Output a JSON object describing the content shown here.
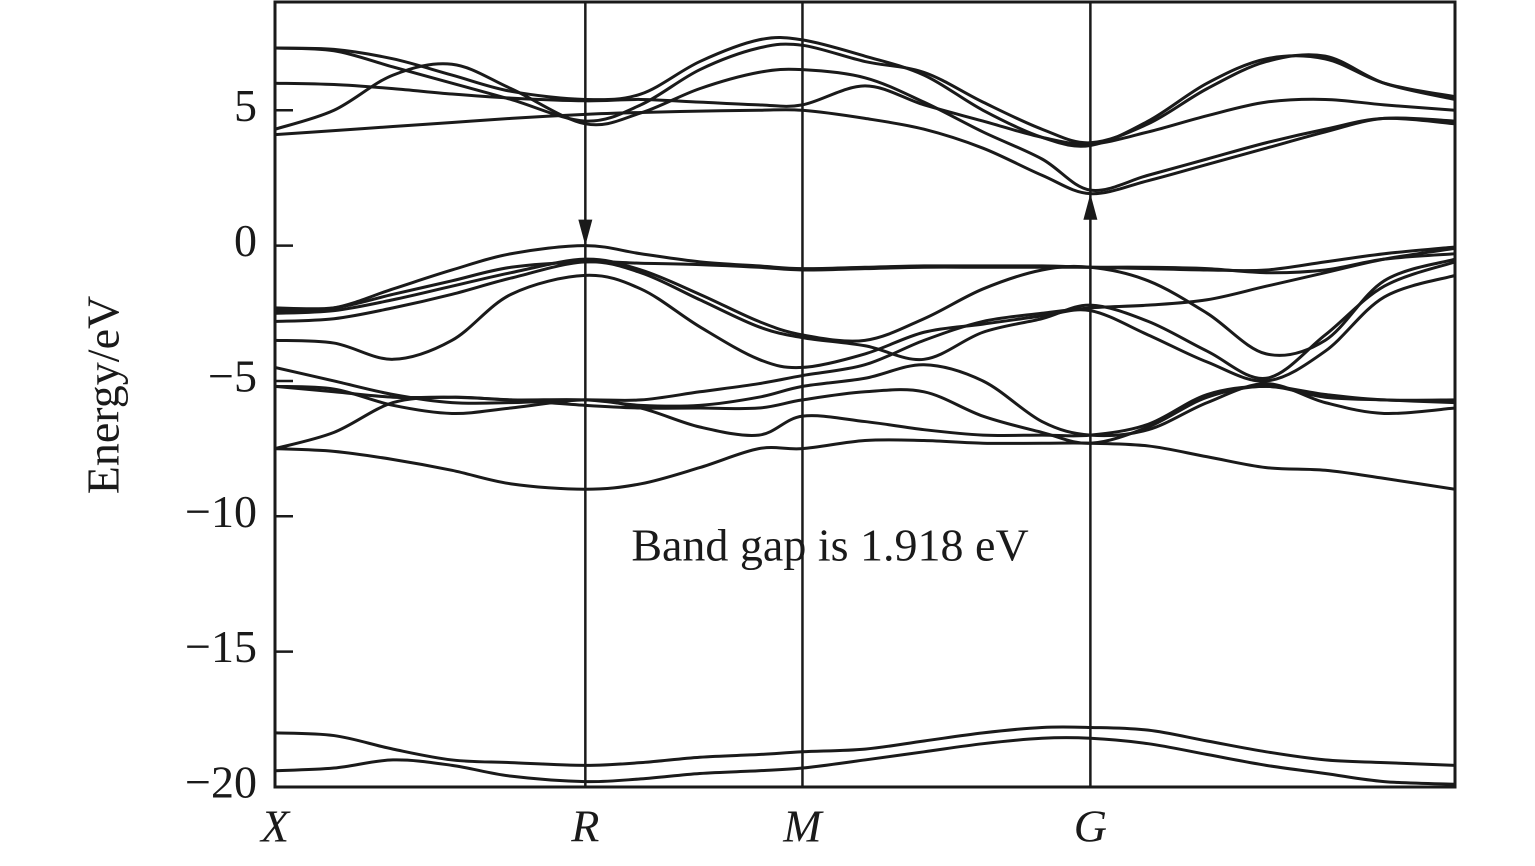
{
  "chart_data": {
    "type": "line",
    "ylabel": "Energy/eV",
    "annotation": "Band gap is 1.918 eV",
    "x": [
      0,
      0.05,
      0.1,
      0.15,
      0.2,
      0.263,
      0.31,
      0.36,
      0.41,
      0.447,
      0.5,
      0.55,
      0.6,
      0.65,
      0.691,
      0.74,
      0.79,
      0.84,
      0.89,
      0.94,
      1.0
    ],
    "xlim": [
      0,
      1.0
    ],
    "xticks": [
      {
        "value": 0,
        "label": "X"
      },
      {
        "value": 0.263,
        "label": "R"
      },
      {
        "value": 0.447,
        "label": "M"
      },
      {
        "value": 0.691,
        "label": "G"
      }
    ],
    "ylim": [
      -20,
      9
    ],
    "yticks": [
      {
        "value": -20,
        "label": "−20"
      },
      {
        "value": -15,
        "label": "−15"
      },
      {
        "value": -10,
        "label": "−10"
      },
      {
        "value": -5,
        "label": "−5"
      },
      0,
      5
    ],
    "xgrid": true,
    "vbm": {
      "x": 0.263,
      "y": 0
    },
    "cbm": {
      "x": 0.691,
      "y": 1.918
    },
    "series": [
      {
        "color": "#1a1a1a",
        "values": [
          4.1,
          4.25,
          4.4,
          4.55,
          4.7,
          4.85,
          4.92,
          4.97,
          5.0,
          5.0,
          4.7,
          4.3,
          3.6,
          2.6,
          1.92,
          2.4,
          3.0,
          3.6,
          4.2,
          4.7,
          4.6
        ]
      },
      {
        "color": "#1a1a1a",
        "values": [
          4.3,
          5.0,
          6.3,
          6.7,
          5.8,
          4.5,
          4.9,
          5.8,
          6.4,
          6.5,
          6.2,
          5.3,
          4.2,
          3.2,
          2.05,
          2.6,
          3.2,
          3.8,
          4.3,
          4.7,
          4.5
        ]
      },
      {
        "color": "#1a1a1a",
        "values": [
          6.0,
          5.95,
          5.8,
          5.6,
          5.45,
          5.35,
          5.4,
          5.3,
          5.2,
          5.2,
          5.9,
          5.2,
          4.6,
          4.0,
          3.75,
          4.2,
          4.8,
          5.3,
          5.4,
          5.2,
          5.0
        ]
      },
      {
        "color": "#1a1a1a",
        "values": [
          7.3,
          7.2,
          6.6,
          6.0,
          5.4,
          4.6,
          5.2,
          6.5,
          7.3,
          7.4,
          6.8,
          6.4,
          5.3,
          4.3,
          3.8,
          4.5,
          5.8,
          6.8,
          7.0,
          6.0,
          5.4
        ]
      },
      {
        "color": "#1a1a1a",
        "values": [
          7.3,
          7.25,
          6.9,
          6.3,
          5.7,
          5.4,
          5.6,
          6.8,
          7.6,
          7.6,
          7.0,
          6.3,
          5.0,
          4.0,
          3.7,
          4.6,
          6.0,
          6.9,
          6.9,
          6.0,
          5.5
        ]
      },
      {
        "color": "#1a1a1a",
        "values": [
          -2.4,
          -2.3,
          -1.6,
          -0.9,
          -0.3,
          0,
          -0.3,
          -0.6,
          -0.75,
          -0.85,
          -0.8,
          -0.75,
          -0.75,
          -0.75,
          -0.8,
          -0.85,
          -0.9,
          -0.9,
          -0.6,
          -0.3,
          -0.05
        ]
      },
      {
        "color": "#1a1a1a",
        "values": [
          -2.5,
          -2.4,
          -2.0,
          -1.5,
          -1.0,
          -0.5,
          -0.9,
          -1.8,
          -2.8,
          -3.3,
          -3.5,
          -2.7,
          -1.6,
          -0.9,
          -0.8,
          -1.3,
          -2.5,
          -4.0,
          -3.5,
          -1.3,
          -0.5
        ]
      },
      {
        "color": "#1a1a1a",
        "values": [
          -2.8,
          -2.7,
          -2.3,
          -1.8,
          -1.2,
          -0.6,
          -1.0,
          -2.0,
          -3.0,
          -3.4,
          -3.7,
          -4.2,
          -3.2,
          -2.7,
          -2.2,
          -2.8,
          -3.9,
          -4.9,
          -3.3,
          -1.5,
          -0.6
        ]
      },
      {
        "color": "#1a1a1a",
        "values": [
          -3.5,
          -3.6,
          -4.2,
          -3.5,
          -1.8,
          -1.1,
          -1.6,
          -3.0,
          -4.2,
          -4.5,
          -4.0,
          -3.2,
          -2.9,
          -2.6,
          -2.4,
          -3.3,
          -4.3,
          -5.0,
          -3.9,
          -1.9,
          -1.1
        ]
      },
      {
        "color": "#1a1a1a",
        "values": [
          -2.3,
          -2.3,
          -1.8,
          -1.3,
          -0.8,
          -0.6,
          -0.65,
          -0.7,
          -0.8,
          -0.9,
          -0.85,
          -0.8,
          -0.8,
          -0.8,
          -0.8,
          -0.8,
          -0.85,
          -1.0,
          -0.9,
          -0.5,
          -0.3
        ]
      },
      {
        "color": "#1a1a1a",
        "values": [
          -4.5,
          -5.0,
          -5.5,
          -5.8,
          -5.8,
          -5.7,
          -5.7,
          -5.4,
          -5.1,
          -4.8,
          -4.4,
          -3.5,
          -2.8,
          -2.5,
          -2.3,
          -2.2,
          -2.0,
          -1.5,
          -1.0,
          -0.5,
          -0.1
        ]
      },
      {
        "color": "#1a1a1a",
        "values": [
          -5.2,
          -5.3,
          -5.9,
          -6.2,
          -6.0,
          -5.7,
          -6.0,
          -6.7,
          -7.0,
          -6.3,
          -6.5,
          -6.8,
          -7.0,
          -7.0,
          -7.0,
          -6.6,
          -5.5,
          -5.2,
          -5.5,
          -5.7,
          -5.7
        ]
      },
      {
        "color": "#1a1a1a",
        "values": [
          -7.5,
          -6.9,
          -5.8,
          -5.6,
          -5.7,
          -5.7,
          -5.9,
          -5.9,
          -5.6,
          -5.2,
          -4.9,
          -4.4,
          -5.0,
          -6.5,
          -7.0,
          -6.8,
          -5.8,
          -5.1,
          -5.8,
          -6.2,
          -6.0
        ]
      },
      {
        "color": "#1a1a1a",
        "values": [
          -7.5,
          -7.6,
          -7.9,
          -8.3,
          -8.8,
          -9.0,
          -8.8,
          -8.2,
          -7.5,
          -7.5,
          -7.2,
          -7.2,
          -7.3,
          -7.3,
          -7.3,
          -7.4,
          -7.8,
          -8.2,
          -8.3,
          -8.6,
          -9.0
        ]
      },
      {
        "color": "#1a1a1a",
        "values": [
          -5.2,
          -5.4,
          -5.6,
          -5.6,
          -5.7,
          -5.9,
          -6.0,
          -6.0,
          -6.0,
          -5.7,
          -5.4,
          -5.4,
          -6.3,
          -6.9,
          -7.3,
          -6.7,
          -5.6,
          -5.2,
          -5.6,
          -5.7,
          -5.8
        ]
      },
      {
        "color": "#1a1a1a",
        "values": [
          -18.0,
          -18.1,
          -18.6,
          -19.0,
          -19.1,
          -19.2,
          -19.1,
          -18.9,
          -18.8,
          -18.7,
          -18.6,
          -18.3,
          -18.0,
          -17.8,
          -17.8,
          -17.9,
          -18.3,
          -18.7,
          -19.0,
          -19.1,
          -19.2
        ]
      },
      {
        "color": "#1a1a1a",
        "values": [
          -19.4,
          -19.3,
          -19.0,
          -19.2,
          -19.6,
          -19.8,
          -19.7,
          -19.5,
          -19.4,
          -19.3,
          -19.0,
          -18.7,
          -18.4,
          -18.2,
          -18.2,
          -18.4,
          -18.8,
          -19.2,
          -19.5,
          -19.8,
          -19.9
        ]
      }
    ]
  }
}
